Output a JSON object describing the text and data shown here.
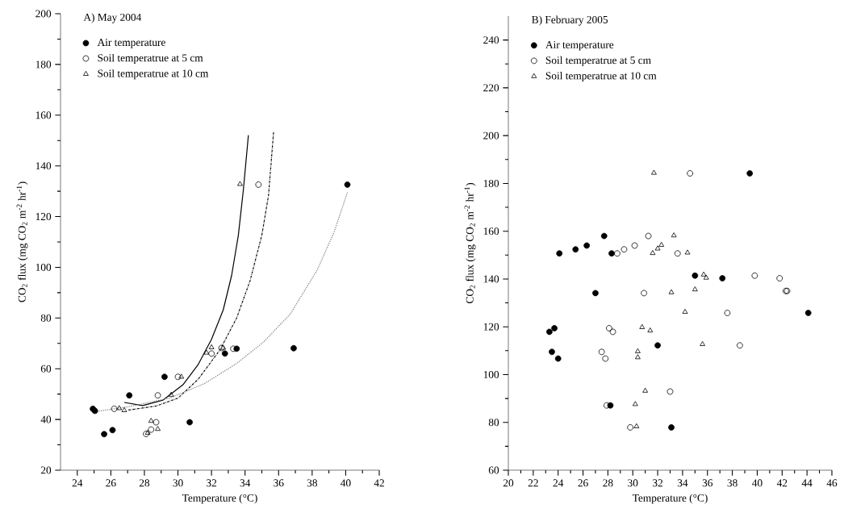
{
  "chart_data": [
    {
      "type": "scatter",
      "title": "A) May 2004",
      "xlabel": "Temperature (°C)",
      "ylabel": "CO$_{2}$ flux (mg CO$_{2}$ m$^{-2}$ hr$^{-1}$)",
      "xlim": [
        23,
        42
      ],
      "ylim": [
        20,
        200
      ],
      "xticks": [
        24,
        26,
        28,
        30,
        32,
        34,
        36,
        38,
        40,
        42
      ],
      "yticks": [
        20,
        40,
        60,
        80,
        100,
        120,
        140,
        160,
        180,
        200
      ],
      "legend": "top left",
      "grid": false,
      "series": [
        {
          "name": "Air temperature",
          "color": "#000000",
          "marker": "circle",
          "x": [
            24.93,
            25.05,
            25.6,
            26.1,
            27.1,
            29.2,
            30.7,
            32.8,
            33.5,
            36.9,
            40.1
          ],
          "values": [
            44.2,
            43.4,
            34.2,
            35.8,
            49.5,
            56.8,
            38.9,
            66.0,
            67.9,
            68.1,
            132.6
          ]
        },
        {
          "name": "Soil temperatrue at 5 cm",
          "color": "#000000",
          "marker": "circle",
          "x": [
            26.2,
            28.8,
            28.7,
            28.4,
            28.1,
            30.0,
            32.0,
            32.6,
            33.3,
            34.8
          ],
          "values": [
            44.2,
            49.5,
            38.9,
            36.0,
            34.3,
            56.8,
            66.0,
            68.2,
            67.9,
            132.6
          ]
        },
        {
          "name": "Soil temperatrue at 10 cm",
          "color": "#000000",
          "marker": "triangle",
          "x": [
            26.5,
            26.8,
            28.4,
            28.8,
            28.2,
            29.6,
            30.2,
            31.7,
            32.0,
            32.7,
            33.7
          ],
          "values": [
            44.4,
            43.6,
            39.4,
            36.2,
            34.7,
            49.7,
            56.8,
            66.3,
            68.4,
            68.2,
            132.8
          ]
        },
        {
          "type": "line",
          "color": "#000000",
          "line_style": "solid",
          "marker": "none",
          "x": [
            26.8,
            27.9,
            29.1,
            30.3,
            31.2,
            32.0,
            32.7,
            33.2,
            33.6,
            33.9,
            34.2
          ],
          "values": [
            46.7,
            45.5,
            47.6,
            53.7,
            61.6,
            71.6,
            83.2,
            96.8,
            112.6,
            130.5,
            152.1
          ]
        },
        {
          "type": "line",
          "color": "#000000",
          "line_style": "dashed",
          "marker": "none",
          "x": [
            27.05,
            28.7,
            30.0,
            31.2,
            32.5,
            33.5,
            34.3,
            35.0,
            35.4,
            35.7
          ],
          "values": [
            43.7,
            45.3,
            48.4,
            55.8,
            67.4,
            80.0,
            94.7,
            112.6,
            128.4,
            153.2
          ]
        },
        {
          "type": "line",
          "color": "#808080",
          "line_style": "dotted",
          "marker": "none",
          "x": [
            24.9,
            27.1,
            29.5,
            31.6,
            33.5,
            35.1,
            36.7,
            38.3,
            39.3,
            40.1
          ],
          "values": [
            42.9,
            45.1,
            48.4,
            54.2,
            62.1,
            70.5,
            81.6,
            98.9,
            113.7,
            129.5
          ]
        }
      ]
    },
    {
      "type": "scatter",
      "title": "B) February 2005",
      "xlabel": "Temperature (°C)",
      "ylabel": "CO$_{2}$ flux (mg CO$_{2}$ m$^{-2}$ hr$^{-1}$)",
      "xlim": [
        20,
        46
      ],
      "ylim": [
        60,
        250
      ],
      "xticks": [
        20,
        22,
        24,
        26,
        28,
        30,
        32,
        34,
        36,
        38,
        40,
        42,
        44,
        46
      ],
      "yticks": [
        60,
        80,
        100,
        120,
        140,
        160,
        180,
        200,
        220,
        240
      ],
      "legend": "top left",
      "grid": false,
      "series": [
        {
          "name": "Air temperature",
          "color": "#000000",
          "marker": "circle",
          "x": [
            23.3,
            23.7,
            23.5,
            24.0,
            24.1,
            25.4,
            26.3,
            27.0,
            27.7,
            28.3,
            28.2,
            32.0,
            33.1,
            35.0,
            37.2,
            39.4,
            44.1
          ],
          "values": [
            117.9,
            119.4,
            109.5,
            106.7,
            150.7,
            152.4,
            154.0,
            134.1,
            158.0,
            150.7,
            87.1,
            112.2,
            77.9,
            141.4,
            140.3,
            184.2,
            125.8
          ]
        },
        {
          "name": "Soil temperatrue at 5 cm",
          "color": "#000000",
          "marker": "circle",
          "x": [
            27.9,
            27.5,
            27.8,
            28.1,
            28.4,
            28.75,
            29.3,
            30.15,
            29.8,
            30.9,
            31.25,
            33.0,
            33.6,
            34.6,
            37.6,
            38.6,
            39.8,
            41.8,
            42.3,
            42.4
          ],
          "values": [
            87.1,
            109.5,
            106.7,
            119.4,
            117.9,
            150.7,
            152.4,
            154.0,
            77.9,
            134.1,
            158.0,
            92.9,
            150.7,
            184.2,
            125.8,
            112.2,
            141.4,
            140.3,
            135.0,
            135.0
          ]
        },
        {
          "name": "Soil temperatrue at 10 cm",
          "color": "#000000",
          "marker": "triangle",
          "x": [
            31.7,
            33.3,
            32.3,
            32.0,
            31.6,
            34.4,
            35.7,
            35.9,
            33.1,
            35.0,
            34.2,
            30.75,
            31.4,
            35.6,
            30.4,
            30.4,
            31.0,
            30.2,
            30.3
          ],
          "values": [
            184.4,
            158.2,
            154.2,
            152.7,
            150.8,
            151.0,
            141.8,
            140.5,
            134.4,
            135.6,
            126.2,
            119.8,
            118.4,
            112.7,
            109.7,
            107.2,
            93.2,
            87.6,
            78.3
          ]
        }
      ]
    }
  ]
}
